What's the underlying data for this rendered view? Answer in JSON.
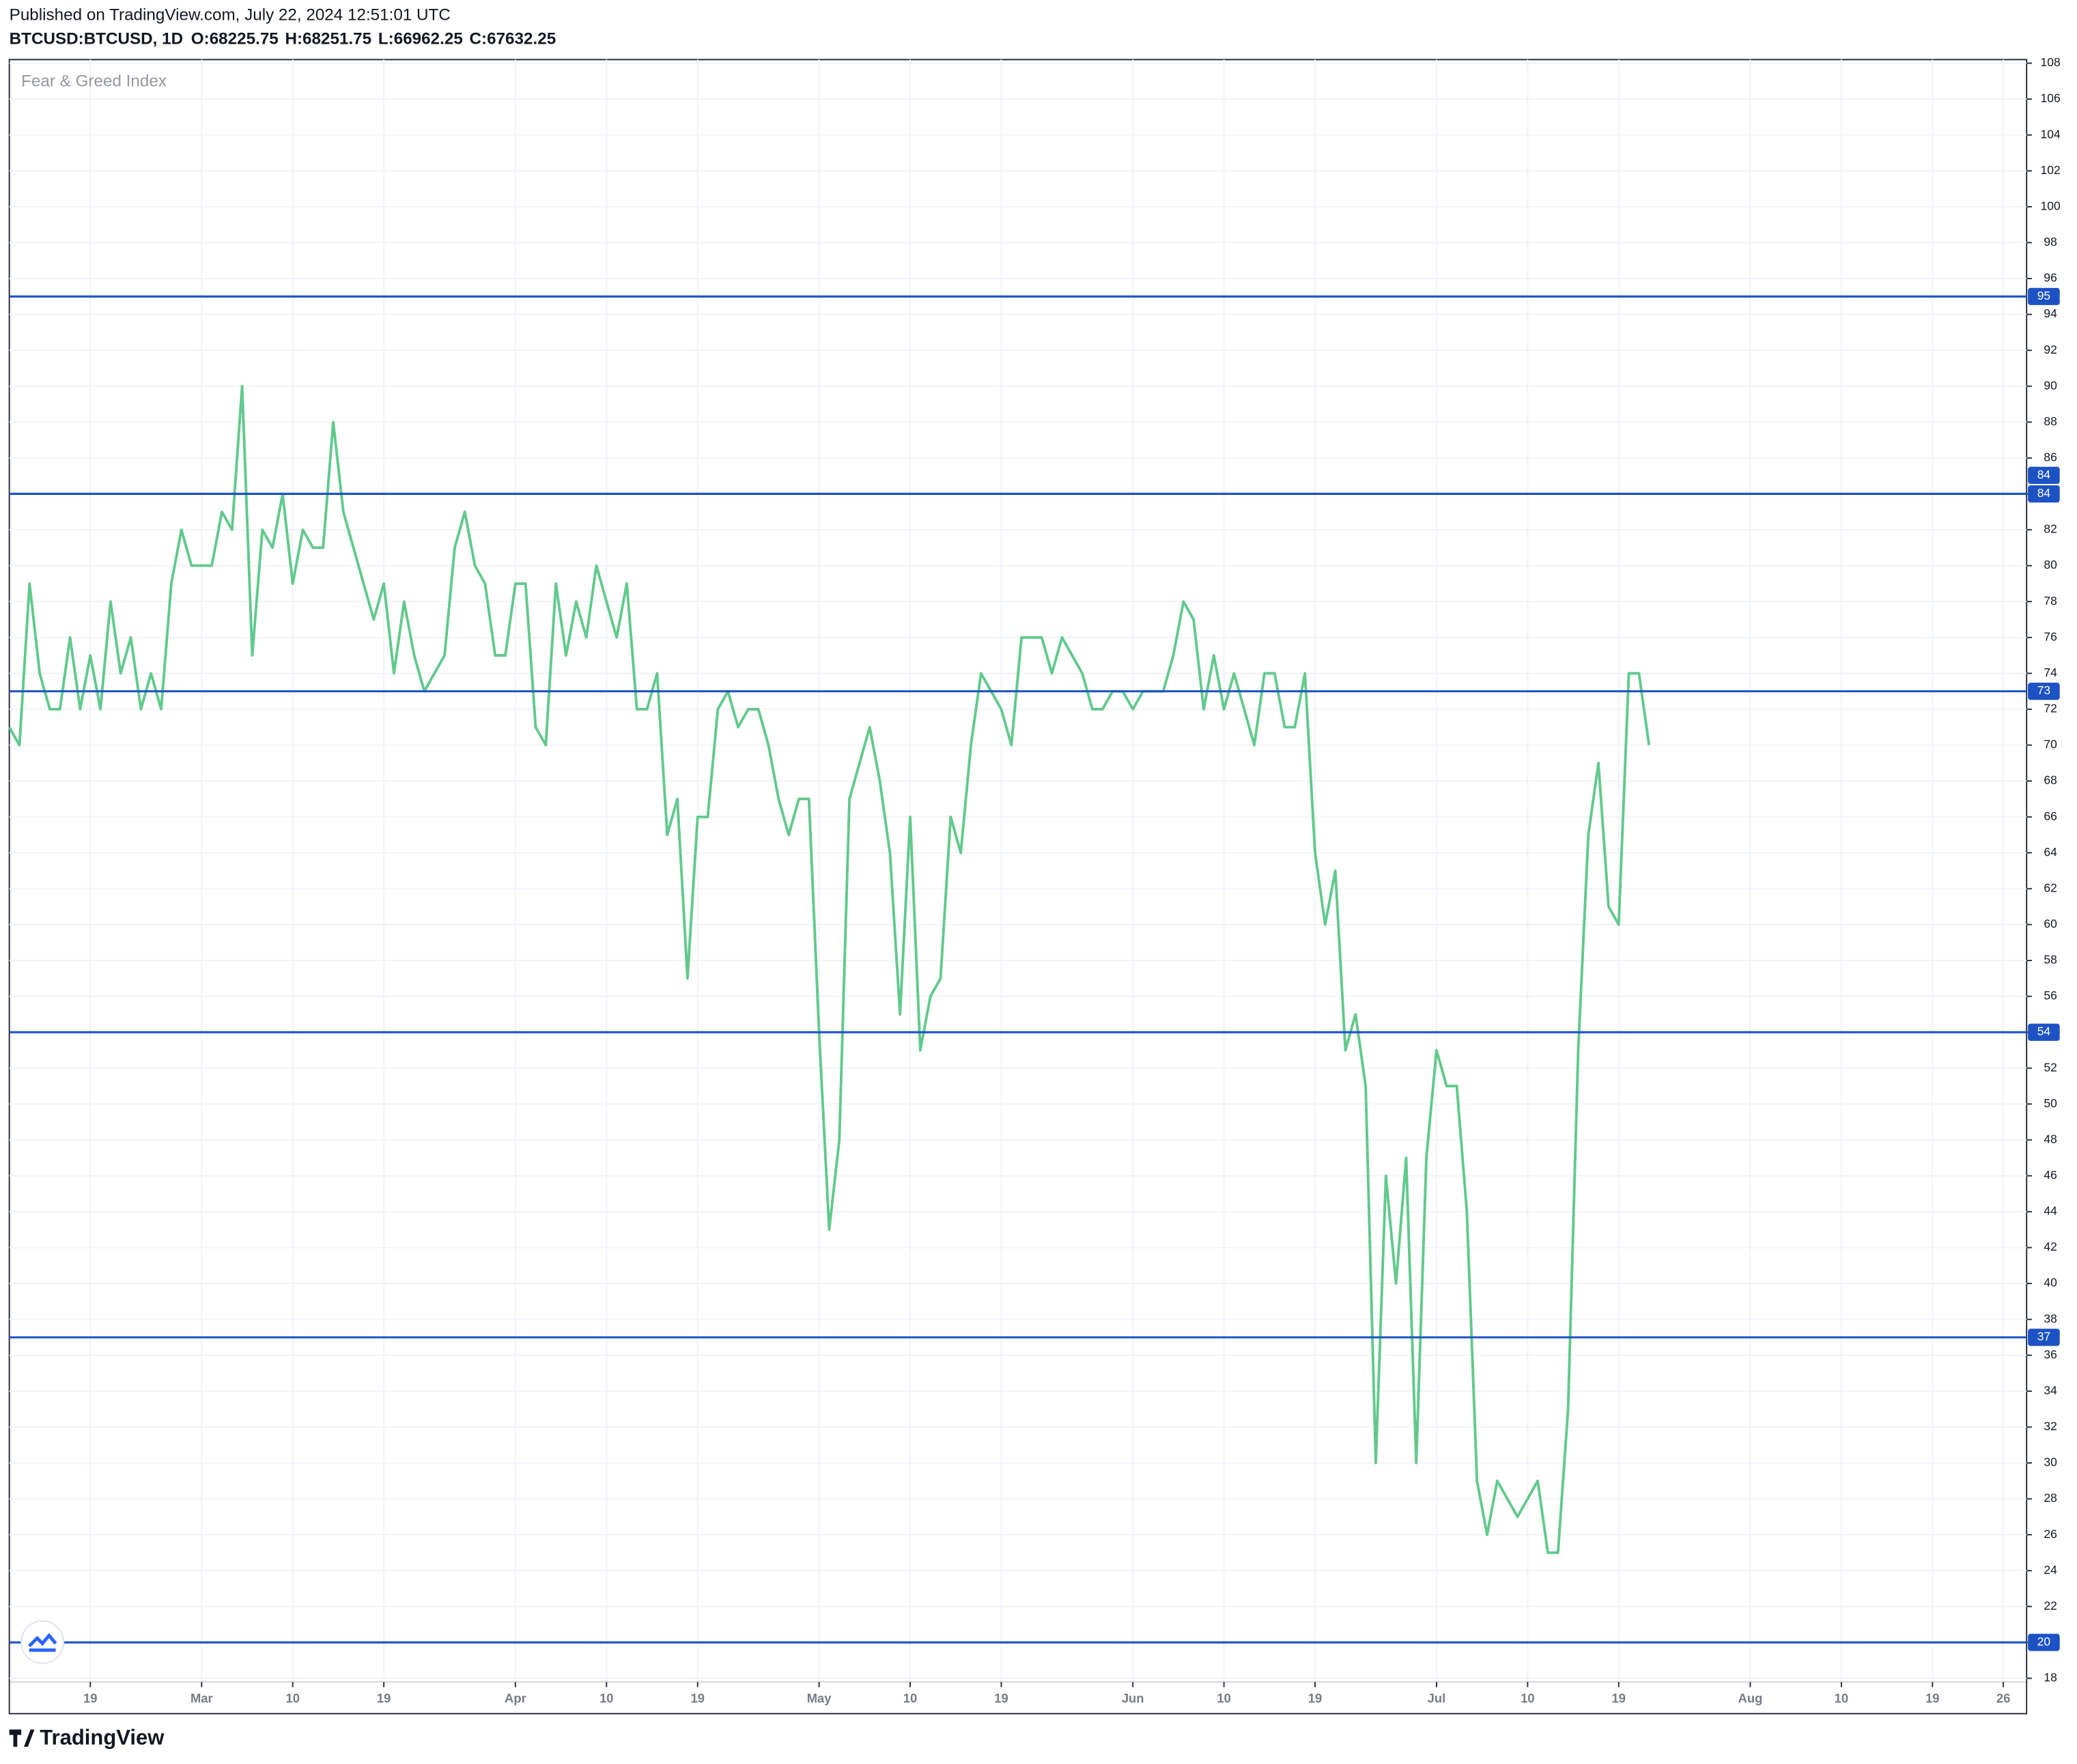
{
  "header": {
    "published": "Published on TradingView.com, July 22, 2024 12:51:01 UTC",
    "symbol": "BTCUSD:BTCUSD, 1D",
    "ohlc": [
      {
        "label": "O:",
        "value": 68225.75
      },
      {
        "label": "H:",
        "value": 68251.75
      },
      {
        "label": "L:",
        "value": 66962.25
      },
      {
        "label": "C:",
        "value": 67632.25
      }
    ]
  },
  "chart_data": {
    "type": "line",
    "title": "Fear & Greed Index",
    "color": "#62c98c",
    "level_color": "#1c52c4",
    "grid": true,
    "values": [
      71,
      70,
      79,
      74,
      72,
      72,
      76,
      72,
      75,
      72,
      78,
      74,
      76,
      72,
      74,
      72,
      79,
      82,
      80,
      80,
      80,
      83,
      82,
      90,
      75,
      82,
      81,
      84,
      79,
      82,
      81,
      81,
      88,
      83,
      81,
      79,
      77,
      79,
      74,
      78,
      75,
      73,
      74,
      75,
      81,
      83,
      80,
      79,
      75,
      75,
      79,
      79,
      71,
      70,
      79,
      75,
      78,
      76,
      80,
      78,
      76,
      79,
      72,
      72,
      74,
      65,
      67,
      57,
      66,
      66,
      72,
      73,
      71,
      72,
      72,
      70,
      67,
      65,
      67,
      67,
      54,
      43,
      48,
      67,
      69,
      71,
      68,
      64,
      55,
      66,
      53,
      56,
      57,
      66,
      64,
      70,
      74,
      73,
      72,
      70,
      76,
      76,
      76,
      74,
      76,
      75,
      74,
      72,
      72,
      73,
      73,
      72,
      73,
      73,
      73,
      75,
      78,
      77,
      72,
      75,
      72,
      74,
      72,
      70,
      74,
      74,
      71,
      71,
      74,
      64,
      60,
      63,
      53,
      55,
      51,
      30,
      46,
      40,
      47,
      30,
      47,
      53,
      51,
      51,
      44,
      29,
      26,
      29,
      28,
      27,
      28,
      29,
      25,
      25,
      33,
      53,
      65,
      69,
      61,
      60,
      74,
      74,
      70
    ],
    "levels": [
      95,
      84,
      84,
      73,
      54,
      37,
      20
    ],
    "xlim": [
      0,
      199.3
    ],
    "xticks": [
      {
        "value": 8,
        "label": "19"
      },
      {
        "value": 19,
        "label": "Mar"
      },
      {
        "value": 28,
        "label": "10"
      },
      {
        "value": 37,
        "label": "19"
      },
      {
        "value": 50,
        "label": "Apr"
      },
      {
        "value": 59,
        "label": "10"
      },
      {
        "value": 68,
        "label": "19"
      },
      {
        "value": 80,
        "label": "May"
      },
      {
        "value": 89,
        "label": "10"
      },
      {
        "value": 98,
        "label": "19"
      },
      {
        "value": 111,
        "label": "Jun"
      },
      {
        "value": 120,
        "label": "10"
      },
      {
        "value": 129,
        "label": "19"
      },
      {
        "value": 141,
        "label": "Jul"
      },
      {
        "value": 150,
        "label": "10"
      },
      {
        "value": 159,
        "label": "19"
      },
      {
        "value": 172,
        "label": "Aug"
      },
      {
        "value": 181,
        "label": "10"
      },
      {
        "value": 190,
        "label": "19"
      },
      {
        "value": 197,
        "label": "26"
      }
    ],
    "ylim": [
      17.8,
      108.2
    ],
    "yticks": [
      18,
      20,
      22,
      24,
      26,
      28,
      30,
      32,
      34,
      36,
      38,
      40,
      42,
      44,
      46,
      48,
      50,
      52,
      54,
      56,
      58,
      60,
      62,
      64,
      66,
      68,
      70,
      72,
      74,
      76,
      78,
      80,
      82,
      84,
      86,
      88,
      90,
      92,
      94,
      96,
      98,
      100,
      102,
      104,
      106,
      108
    ]
  },
  "footer": {
    "brand": "TradingView"
  }
}
